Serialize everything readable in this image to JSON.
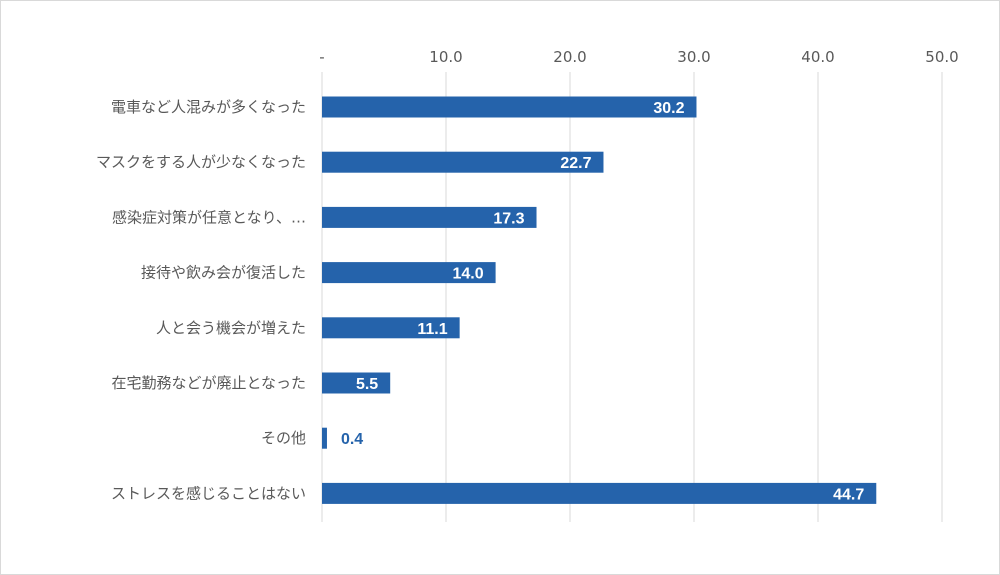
{
  "chart_data": {
    "type": "bar",
    "orientation": "horizontal",
    "categories": [
      "電車など人混みが多くなった",
      "マスクをする人が少なくなった",
      "感染症対策が任意となり、…",
      "接待や飲み会が復活した",
      "人と会う機会が増えた",
      "在宅勤務などが廃止となった",
      "その他",
      "ストレスを感じることはない"
    ],
    "values": [
      30.2,
      22.7,
      17.3,
      14.0,
      11.1,
      5.5,
      0.4,
      44.7
    ],
    "data_labels": [
      "30.2",
      "22.7",
      "17.3",
      "14.0",
      "11.1",
      "5.5",
      "0.4",
      "44.7"
    ],
    "xlim": [
      0,
      50
    ],
    "x_ticks": [
      0,
      10,
      20,
      30,
      40,
      50
    ],
    "x_tick_labels": [
      "-",
      "10.0",
      "20.0",
      "30.0",
      "40.0",
      "50.0"
    ],
    "x_axis_position": "top",
    "grid": true,
    "legend": "none",
    "bar_color": "#2563ab",
    "grid_color": "#d9d9d9",
    "label_color_inside": "#ffffff",
    "label_color_outside": "#2563ab",
    "text_color": "#595959"
  }
}
